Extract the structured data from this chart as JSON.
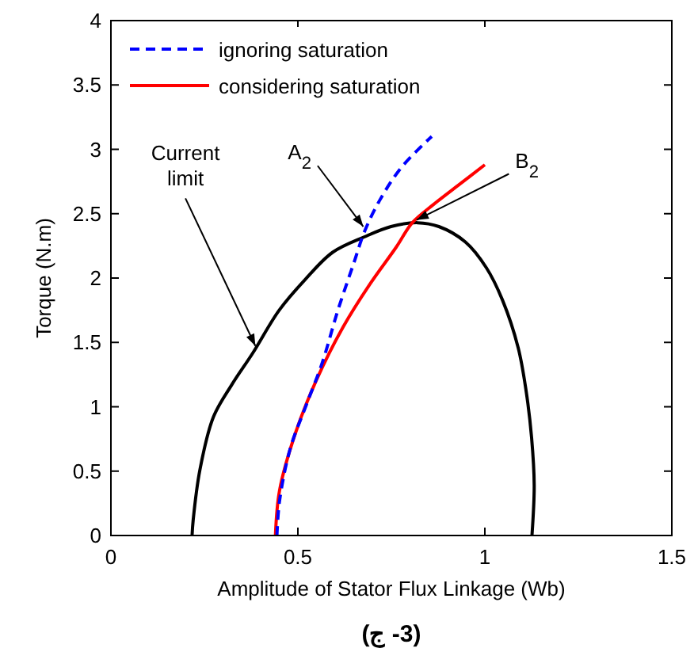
{
  "chart_data": {
    "type": "line",
    "xlabel": "Amplitude of Stator Flux Linkage (Wb)",
    "ylabel": "Torque (N.m)",
    "xlim": [
      0,
      1.5
    ],
    "ylim": [
      0,
      4
    ],
    "xticks": [
      0,
      0.5,
      1,
      1.5
    ],
    "yticks": [
      0,
      0.5,
      1,
      1.5,
      2,
      2.5,
      3,
      3.5,
      4
    ],
    "grid": false,
    "legend": "top left",
    "series": [
      {
        "name": "ignoring saturation",
        "color": "#0000ff",
        "line_style": "dashed",
        "x": [
          0.444,
          0.451,
          0.48,
          0.522,
          0.565,
          0.607,
          0.65,
          0.678,
          0.72,
          0.777,
          0.858
        ],
        "values": [
          0,
          0.27,
          0.68,
          1.01,
          1.34,
          1.75,
          2.12,
          2.36,
          2.61,
          2.86,
          3.1
        ]
      },
      {
        "name": "considering saturation",
        "color": "#ff0000",
        "line_style": "solid",
        "x": [
          0.44,
          0.451,
          0.494,
          0.55,
          0.621,
          0.692,
          0.763,
          0.806,
          0.862,
          0.933,
          1.0
        ],
        "values": [
          0,
          0.35,
          0.8,
          1.21,
          1.62,
          1.95,
          2.24,
          2.43,
          2.57,
          2.73,
          2.88
        ]
      },
      {
        "color": "#000000",
        "line_style": "solid",
        "x": [
          0.217,
          0.22,
          0.238,
          0.274,
          0.323,
          0.38,
          0.45,
          0.52,
          0.593,
          0.678,
          0.749,
          0.82,
          0.877,
          0.948,
          1.004,
          1.047,
          1.089,
          1.11,
          1.125,
          1.132,
          1.126
        ],
        "values": [
          0,
          0.12,
          0.51,
          0.92,
          1.17,
          1.42,
          1.75,
          1.99,
          2.2,
          2.32,
          2.4,
          2.43,
          2.4,
          2.28,
          2.08,
          1.83,
          1.46,
          1.13,
          0.76,
          0.39,
          0
        ]
      }
    ],
    "annotations": [
      {
        "text": "A$_{2}$",
        "x": 0.68,
        "y": 2.38
      },
      {
        "text": "B$_{2}$",
        "x": 0.81,
        "y": 2.44
      },
      {
        "text": "Current limit",
        "x": 0.39,
        "y": 1.45
      },
      "(ج -3)"
    ]
  }
}
